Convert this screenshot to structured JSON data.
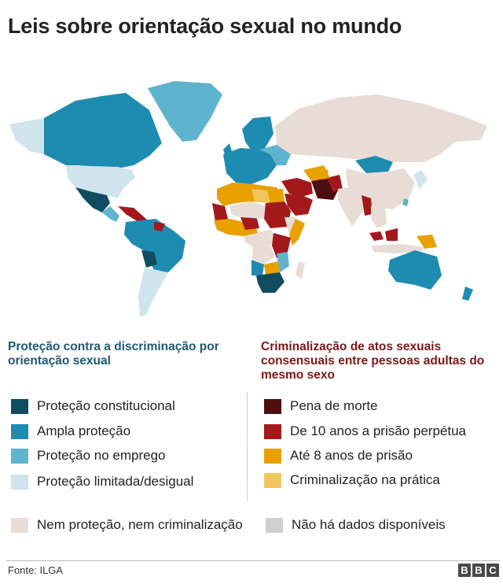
{
  "title": "Leis sobre orientação sexual no mundo",
  "legend_protection": {
    "heading": "Proteção contra a discriminação por orientação sexual",
    "items": [
      {
        "label": "Proteção constitucional",
        "color": "#0f4c5f"
      },
      {
        "label": "Ampla proteção",
        "color": "#1e8bb0"
      },
      {
        "label": "Proteção no emprego",
        "color": "#5eb3cd"
      },
      {
        "label": "Proteção limitada/desigual",
        "color": "#cfe4ec"
      }
    ]
  },
  "legend_criminalization": {
    "heading": "Criminalização de atos sexuais consensuais entre pessoas adultas do mesmo sexo",
    "items": [
      {
        "label": "Pena de morte",
        "color": "#4d0e0e"
      },
      {
        "label": "De 10 anos a prisão perpétua",
        "color": "#a3191b"
      },
      {
        "label": "Até 8 anos de prisão",
        "color": "#e8a100"
      },
      {
        "label": "Criminalização na prática",
        "color": "#f1c55a"
      }
    ]
  },
  "legend_other": [
    {
      "label": "Nem proteção, nem criminalização",
      "color": "#e8ddd6"
    },
    {
      "label": "Não há dados disponíveis",
      "color": "#cfcfcf"
    }
  ],
  "footer": {
    "source": "Fonte: ILGA",
    "logo_letters": [
      "B",
      "B",
      "C"
    ]
  }
}
